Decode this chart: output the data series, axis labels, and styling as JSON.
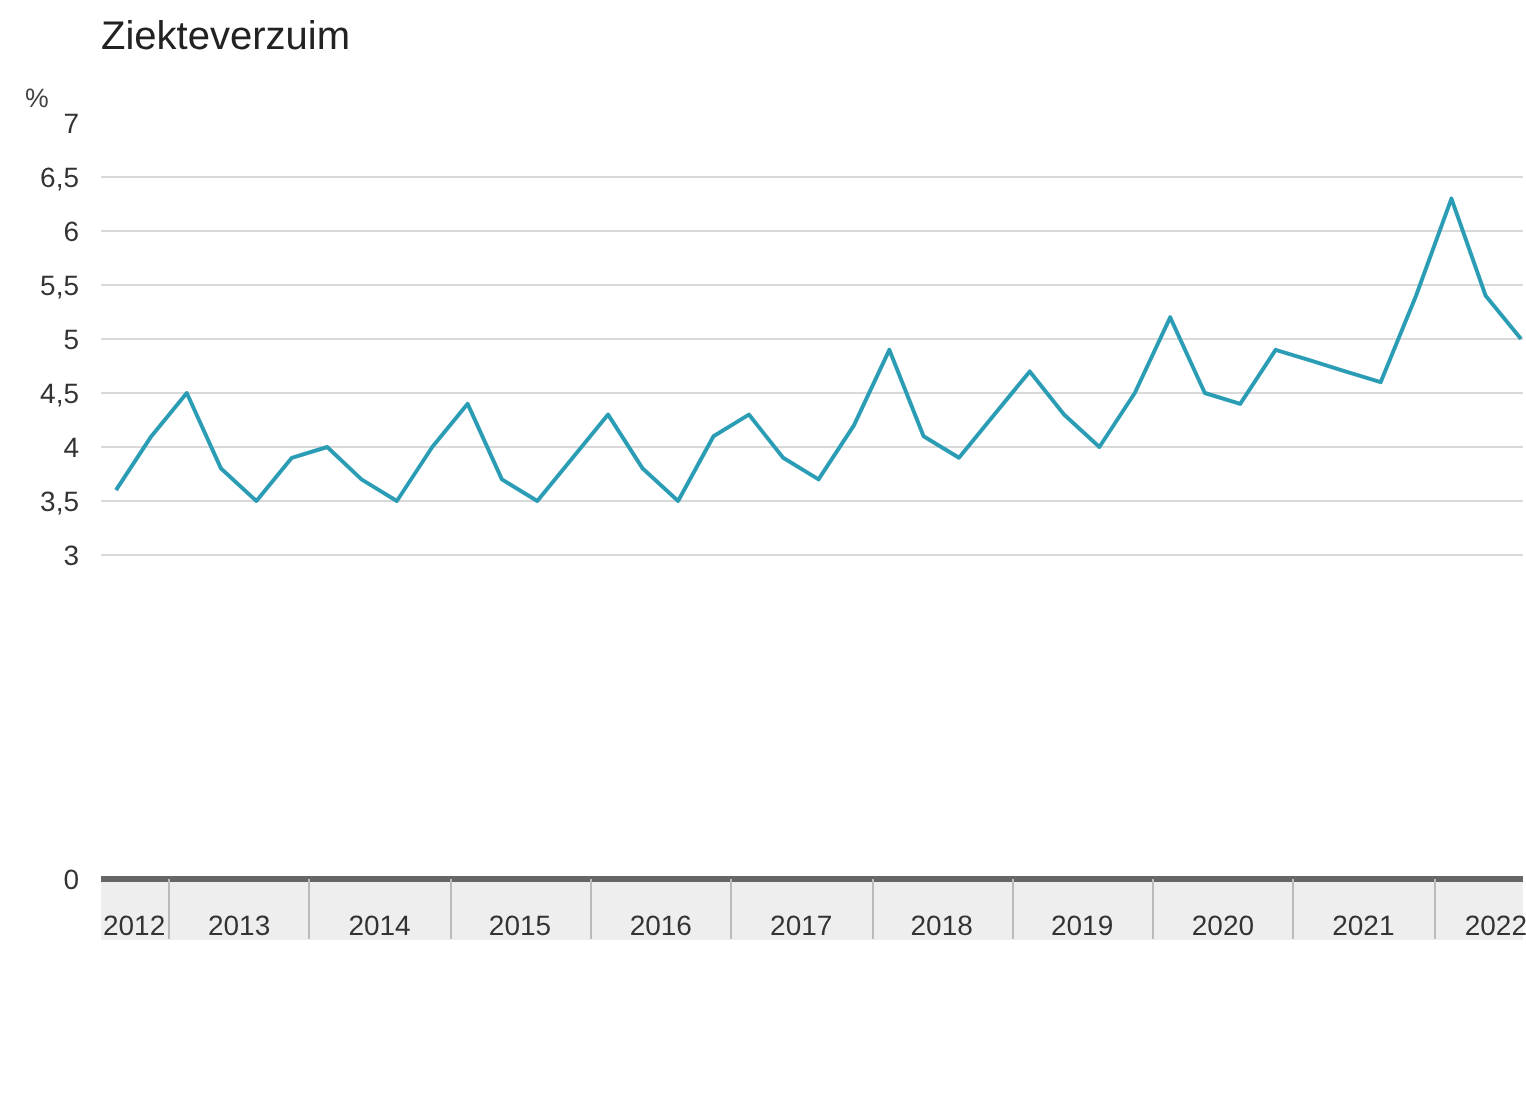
{
  "chart_data": {
    "type": "line",
    "title": "Ziekteverzuim",
    "ylabel": "%",
    "x": [
      "2012-08-15",
      "2012-11-15",
      "2013-02-15",
      "2013-05-15",
      "2013-08-15",
      "2013-11-15",
      "2014-02-15",
      "2014-05-15",
      "2014-08-15",
      "2014-11-15",
      "2015-02-15",
      "2015-05-15",
      "2015-08-15",
      "2015-11-15",
      "2016-02-15",
      "2016-05-15",
      "2016-08-15",
      "2016-11-15",
      "2017-02-15",
      "2017-05-15",
      "2017-08-15",
      "2017-11-15",
      "2018-02-15",
      "2018-05-15",
      "2018-08-15",
      "2018-11-15",
      "2019-02-15",
      "2019-05-15",
      "2019-08-15",
      "2019-11-15",
      "2020-02-15",
      "2020-05-15",
      "2020-08-15",
      "2020-11-15",
      "2021-02-15",
      "2021-05-15",
      "2021-08-15",
      "2021-11-15",
      "2022-02-15",
      "2022-05-15",
      "2022-08-15"
    ],
    "series": [
      {
        "color": "#2a9db5",
        "values": [
          3.6,
          4.1,
          4.5,
          3.8,
          3.5,
          3.9,
          4.0,
          3.7,
          3.5,
          4.0,
          4.4,
          3.7,
          3.5,
          3.9,
          4.3,
          3.8,
          3.5,
          4.1,
          4.3,
          3.9,
          3.7,
          4.2,
          4.9,
          4.1,
          3.9,
          4.3,
          4.7,
          4.3,
          4.0,
          4.5,
          5.2,
          4.5,
          4.4,
          4.9,
          4.8,
          4.7,
          4.6,
          5.4,
          6.3,
          5.4,
          5.0
        ]
      }
    ],
    "xlim": [
      "2012-07-07",
      "2022-08-20"
    ],
    "xticks": [
      {
        "value": "2012-10-01",
        "label": "2012"
      },
      {
        "value": "2013-07-01",
        "label": "2013"
      },
      {
        "value": "2014-07-01",
        "label": "2014"
      },
      {
        "value": "2015-07-01",
        "label": "2015"
      },
      {
        "value": "2016-07-01",
        "label": "2016"
      },
      {
        "value": "2017-07-01",
        "label": "2017"
      },
      {
        "value": "2018-07-01",
        "label": "2018"
      },
      {
        "value": "2019-07-01",
        "label": "2019"
      },
      {
        "value": "2020-07-01",
        "label": "2020"
      },
      {
        "value": "2021-07-01",
        "label": "2021"
      },
      {
        "value": "2022-07-01",
        "label": "2022"
      }
    ],
    "ylim": [
      0,
      7
    ],
    "yticks": [
      0,
      3,
      {
        "value": 3.5,
        "label": "3,5"
      },
      4,
      {
        "value": 4.5,
        "label": "4,5"
      },
      5,
      {
        "value": 5.5,
        "label": "5,5"
      },
      6,
      {
        "value": 6.5,
        "label": "6,5"
      },
      7
    ],
    "grid": "y",
    "marker": "none",
    "line_style": "solid"
  }
}
